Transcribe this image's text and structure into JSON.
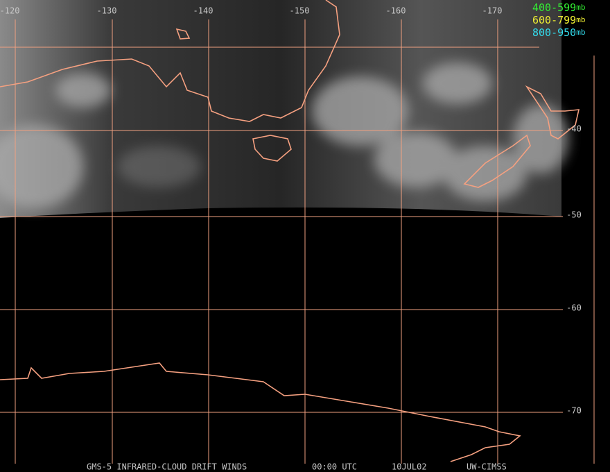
{
  "map": {
    "longitude_labels": [
      "-120",
      "-130",
      "-140",
      "-150",
      "-160",
      "-170"
    ],
    "latitude_labels": [
      "-40",
      "-50",
      "-60",
      "-70"
    ],
    "legend": [
      {
        "range": "400-599",
        "unit": "mb",
        "color": "#33ee33"
      },
      {
        "range": "600-799",
        "unit": "mb",
        "color": "#eeee33"
      },
      {
        "range": "800-950",
        "unit": "mb",
        "color": "#33ddee"
      }
    ],
    "footer": {
      "product": "GMS-5 INFRARED-CLOUD DRIFT WINDS",
      "time": "00:00 UTC",
      "date": "10JUL02",
      "source": "UW-CIMSS"
    }
  }
}
